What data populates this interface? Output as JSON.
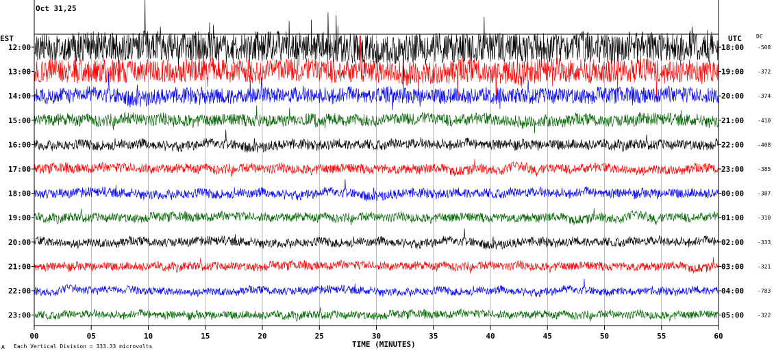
{
  "chart_data": {
    "type": "line",
    "header": {
      "date_text": "Oct 31,25",
      "left_zone": "EST",
      "right_zone": "UTC",
      "dc_label": "DC"
    },
    "xlabel": "TIME (MINUTES)",
    "x_ticks": [
      "00",
      "05",
      "10",
      "15",
      "20",
      "25",
      "30",
      "35",
      "40",
      "45",
      "50",
      "55",
      "60"
    ],
    "xlim": [
      0,
      60
    ],
    "footer_note": "Each Vertical Division =  333.33 microvolts",
    "footer_mark": "A",
    "trace_colors": [
      "#000000",
      "#ff0000",
      "#0000ff",
      "#006400"
    ],
    "rows": [
      {
        "left": "12:00",
        "right": "18:00",
        "dc": "-508",
        "color": "#000000",
        "noise": 1.0
      },
      {
        "left": "13:00",
        "right": "19:00",
        "dc": "-372",
        "color": "#ff0000",
        "noise": 0.75
      },
      {
        "left": "14:00",
        "right": "20:00",
        "dc": "-374",
        "color": "#0000ff",
        "noise": 0.45
      },
      {
        "left": "15:00",
        "right": "21:00",
        "dc": "-410",
        "color": "#006400",
        "noise": 0.3
      },
      {
        "left": "16:00",
        "right": "22:00",
        "dc": "-408",
        "color": "#000000",
        "noise": 0.22
      },
      {
        "left": "17:00",
        "right": "23:00",
        "dc": "-385",
        "color": "#ff0000",
        "noise": 0.2
      },
      {
        "left": "18:00",
        "right": "00:00",
        "dc": "-387",
        "color": "#0000ff",
        "noise": 0.2
      },
      {
        "left": "19:00",
        "right": "01:00",
        "dc": "-310",
        "color": "#006400",
        "noise": 0.18
      },
      {
        "left": "20:00",
        "right": "02:00",
        "dc": "-333",
        "color": "#000000",
        "noise": 0.18
      },
      {
        "left": "21:00",
        "right": "03:00",
        "dc": "-321",
        "color": "#ff0000",
        "noise": 0.16
      },
      {
        "left": "22:00",
        "right": "04:00",
        "dc": "-783",
        "color": "#0000ff",
        "noise": 0.14
      },
      {
        "left": "23:00",
        "right": "05:00",
        "dc": "-322",
        "color": "#006400",
        "noise": 0.14
      }
    ]
  }
}
